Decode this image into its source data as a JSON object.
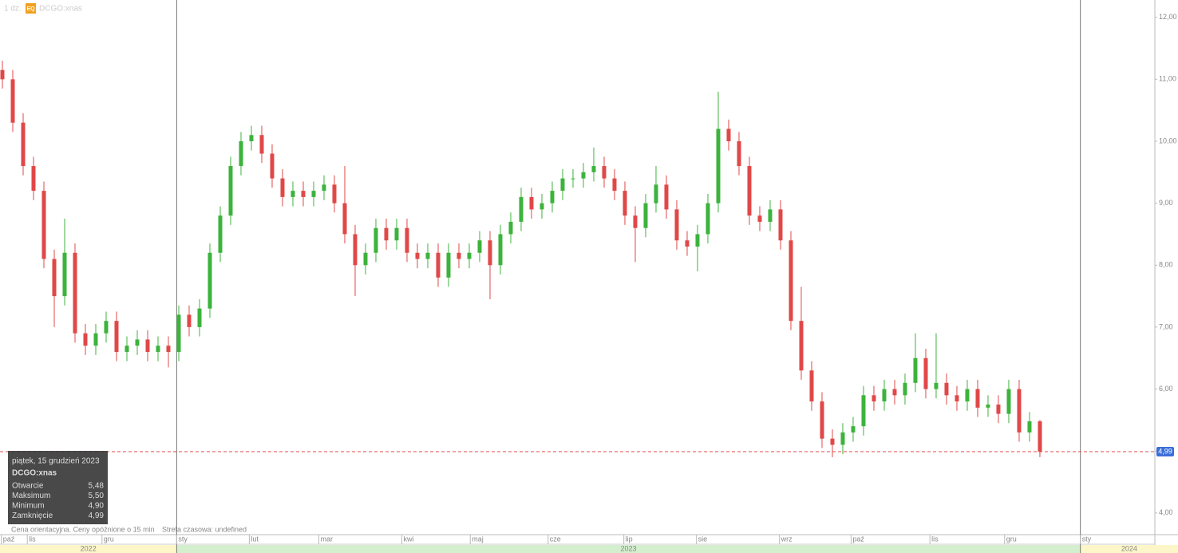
{
  "chart_data": {
    "type": "candlestick",
    "interval": "1 dz.",
    "badge": "EQ",
    "symbol": "DCGO:xnas",
    "note": "Cena orientacyjna. Ceny opóźnione o 15 min",
    "timezone": "Strefa czasowa: undefined",
    "up_color": "#3cb33c",
    "down_color": "#e04848",
    "ylim": [
      3.65,
      12.28
    ],
    "yticks": [
      {
        "value": 4,
        "label": "4,00"
      },
      {
        "value": 5,
        "label": "5,00"
      },
      {
        "value": 6,
        "label": "6,00"
      },
      {
        "value": 7,
        "label": "7,00"
      },
      {
        "value": 8,
        "label": "8,00"
      },
      {
        "value": 9,
        "label": "9,00"
      },
      {
        "value": 10,
        "label": "10,00"
      },
      {
        "value": 11,
        "label": "11,00"
      },
      {
        "value": 12,
        "label": "12,00"
      }
    ],
    "xlim": [
      -0.23,
      111.08
    ],
    "xticks": [
      {
        "value": -0.1,
        "label": "paź"
      },
      {
        "value": 2.4,
        "label": "lis"
      },
      {
        "value": 9.6,
        "label": "gru"
      },
      {
        "value": 16.8,
        "label": "sty"
      },
      {
        "value": 23.8,
        "label": "lut"
      },
      {
        "value": 30.5,
        "label": "mar"
      },
      {
        "value": 38.5,
        "label": "kwi"
      },
      {
        "value": 45.1,
        "label": "maj"
      },
      {
        "value": 52.6,
        "label": "cze"
      },
      {
        "value": 59.9,
        "label": "lip"
      },
      {
        "value": 66.9,
        "label": "sie"
      },
      {
        "value": 74.9,
        "label": "wrz"
      },
      {
        "value": 81.8,
        "label": "paź"
      },
      {
        "value": 89.4,
        "label": "lis"
      },
      {
        "value": 96.6,
        "label": "gru"
      },
      {
        "value": 103.9,
        "label": "sty"
      }
    ],
    "years": [
      {
        "label": "2022",
        "range": [
          -0.23,
          16.8
        ],
        "color": "#fdf6c8"
      },
      {
        "label": "2023",
        "range": [
          16.8,
          103.9
        ],
        "color": "#d3efcd"
      },
      {
        "label": "2024",
        "range": [
          103.9,
          111.08
        ],
        "color": "#fdf6c8"
      }
    ],
    "last_price": {
      "value": 4.99,
      "label": "4,99"
    },
    "open": [
      11.15,
      11.0,
      10.3,
      9.6,
      9.2,
      8.1,
      7.5,
      8.2,
      6.9,
      6.7,
      6.9,
      7.1,
      6.6,
      6.7,
      6.8,
      6.6,
      6.7,
      6.6,
      7.2,
      7.0,
      7.3,
      8.2,
      8.8,
      9.6,
      10.0,
      10.1,
      9.8,
      9.4,
      9.1,
      9.2,
      9.1,
      9.2,
      9.3,
      9.0,
      8.5,
      8.0,
      8.2,
      8.6,
      8.4,
      8.6,
      8.2,
      8.1,
      8.2,
      7.8,
      8.2,
      8.1,
      8.2,
      8.4,
      8.0,
      8.5,
      8.7,
      9.1,
      8.9,
      9.0,
      9.2,
      9.4,
      9.4,
      9.5,
      9.6,
      9.4,
      9.2,
      8.8,
      8.6,
      9.0,
      9.3,
      8.9,
      8.4,
      8.3,
      8.5,
      9.0,
      10.2,
      10.0,
      9.6,
      8.8,
      8.7,
      8.9,
      8.4,
      7.1,
      6.3,
      5.8,
      5.2,
      5.1,
      5.3,
      5.4,
      5.9,
      5.8,
      6.0,
      5.9,
      6.1,
      6.5,
      6.0,
      6.1,
      5.9,
      5.8,
      6.0,
      5.7,
      5.75,
      5.6,
      6.0,
      5.3,
      5.48
    ],
    "high": [
      11.3,
      11.15,
      10.45,
      9.75,
      9.35,
      8.25,
      8.75,
      8.35,
      7.05,
      7.05,
      7.25,
      7.25,
      6.85,
      6.95,
      6.95,
      6.85,
      6.85,
      7.35,
      7.35,
      7.45,
      8.35,
      8.95,
      9.75,
      10.15,
      10.25,
      10.25,
      9.95,
      9.55,
      9.35,
      9.35,
      9.35,
      9.45,
      9.45,
      9.6,
      8.65,
      8.35,
      8.75,
      8.75,
      8.75,
      8.75,
      8.35,
      8.35,
      8.35,
      8.35,
      8.35,
      8.35,
      8.55,
      8.55,
      8.65,
      8.85,
      9.25,
      9.25,
      9.15,
      9.35,
      9.55,
      9.55,
      9.65,
      9.9,
      9.75,
      9.55,
      9.35,
      8.95,
      9.15,
      9.6,
      9.45,
      9.05,
      8.55,
      8.65,
      9.15,
      10.8,
      10.35,
      10.15,
      9.75,
      8.95,
      9.05,
      9.05,
      8.55,
      7.65,
      6.45,
      5.95,
      5.35,
      5.45,
      5.55,
      6.05,
      6.05,
      6.15,
      6.15,
      6.25,
      6.9,
      6.65,
      6.9,
      6.25,
      6.05,
      6.15,
      6.15,
      5.9,
      5.9,
      6.15,
      6.15,
      5.63,
      5.5
    ],
    "low": [
      10.85,
      10.15,
      9.45,
      9.05,
      7.95,
      7.0,
      7.35,
      6.75,
      6.55,
      6.55,
      6.75,
      6.45,
      6.45,
      6.55,
      6.45,
      6.45,
      6.35,
      6.45,
      6.85,
      6.85,
      7.15,
      8.05,
      8.65,
      9.45,
      9.85,
      9.65,
      9.25,
      8.95,
      8.95,
      8.95,
      8.95,
      9.05,
      8.85,
      8.35,
      7.5,
      7.85,
      8.05,
      8.25,
      8.25,
      8.05,
      7.95,
      7.95,
      7.65,
      7.65,
      7.95,
      7.95,
      8.05,
      7.45,
      7.85,
      8.35,
      8.55,
      8.75,
      8.75,
      8.85,
      9.05,
      9.25,
      9.25,
      9.35,
      9.25,
      9.05,
      8.65,
      8.05,
      8.45,
      8.85,
      8.75,
      8.25,
      8.15,
      7.9,
      8.35,
      8.85,
      9.85,
      9.45,
      8.65,
      8.55,
      8.55,
      8.25,
      6.95,
      6.15,
      5.65,
      5.05,
      4.9,
      4.95,
      5.15,
      5.25,
      5.65,
      5.65,
      5.75,
      5.75,
      5.95,
      5.85,
      5.85,
      5.75,
      5.65,
      5.65,
      5.55,
      5.55,
      5.45,
      5.45,
      5.15,
      5.15,
      4.9
    ],
    "close": [
      11.0,
      10.3,
      9.6,
      9.2,
      8.1,
      7.5,
      8.2,
      6.9,
      6.7,
      6.9,
      7.1,
      6.6,
      6.7,
      6.8,
      6.6,
      6.7,
      6.6,
      7.2,
      7.0,
      7.3,
      8.2,
      8.8,
      9.6,
      10.0,
      10.1,
      9.8,
      9.4,
      9.1,
      9.2,
      9.1,
      9.2,
      9.3,
      9.0,
      8.5,
      8.0,
      8.2,
      8.6,
      8.4,
      8.6,
      8.2,
      8.1,
      8.2,
      7.8,
      8.2,
      8.1,
      8.2,
      8.4,
      8.0,
      8.5,
      8.7,
      9.1,
      8.9,
      9.0,
      9.2,
      9.4,
      9.4,
      9.5,
      9.6,
      9.4,
      9.2,
      8.8,
      8.6,
      9.0,
      9.3,
      8.9,
      8.4,
      8.3,
      8.5,
      9.0,
      10.2,
      10.0,
      9.6,
      8.8,
      8.7,
      8.9,
      8.4,
      7.1,
      6.3,
      5.8,
      5.2,
      5.1,
      5.3,
      5.4,
      5.9,
      5.8,
      6.0,
      5.9,
      6.1,
      6.5,
      6.0,
      6.1,
      5.9,
      5.8,
      6.0,
      5.7,
      5.75,
      5.6,
      6.0,
      5.3,
      5.48,
      4.99
    ],
    "tooltip": {
      "date": "piątek, 15 grudzień 2023",
      "symbol": "DCGO:xnas",
      "rows": [
        {
          "label": "Otwarcie",
          "value": "5,48"
        },
        {
          "label": "Maksimum",
          "value": "5,50"
        },
        {
          "label": "Minimum",
          "value": "4,90"
        },
        {
          "label": "Zamknięcie",
          "value": "4,99"
        }
      ]
    }
  }
}
